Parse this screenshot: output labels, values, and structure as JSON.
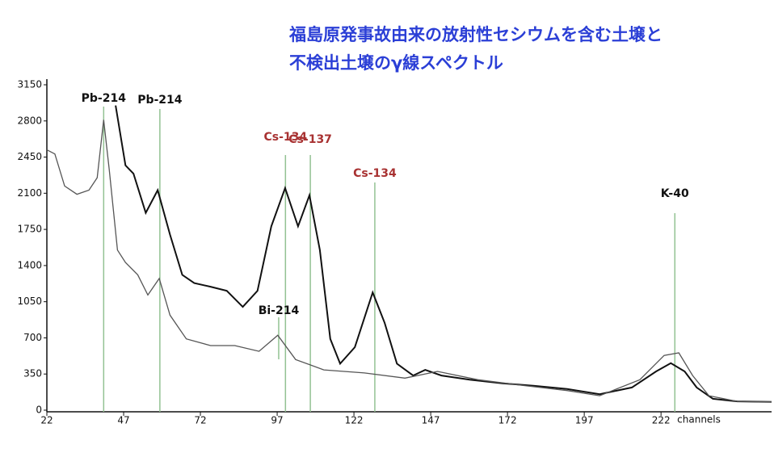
{
  "chart_data": {
    "type": "line",
    "title": [
      "福島原発事故由来の放射性セシウムを含む土壌と",
      "不検出土壌のγ線スペクトル"
    ],
    "x_label": "channels",
    "xlim": [
      22,
      258
    ],
    "xticks": [
      22,
      47,
      72,
      97,
      122,
      147,
      172,
      197,
      222
    ],
    "ylim": [
      0,
      3150
    ],
    "yticks": [
      0,
      350,
      700,
      1050,
      1400,
      1750,
      2100,
      2450,
      2800,
      3150
    ],
    "series": [
      {
        "color": "#111111",
        "x": [
          44.4,
          47.6,
          50.2,
          54.2,
          58.1,
          62.1,
          66.1,
          70,
          75.3,
          80.6,
          85.8,
          90.6,
          95.1,
          99.6,
          103.8,
          107.5,
          110.9,
          114.3,
          117.5,
          122.3,
          128.1,
          132,
          136,
          141.3,
          145.2,
          150.5,
          159.7,
          170.3,
          180.8,
          191.4,
          202,
          212.5,
          220.4,
          225.2,
          229.7,
          233.6,
          238.9,
          246.8,
          258
        ],
        "values": [
          2950,
          2370,
          2290,
          1910,
          2130,
          1700,
          1310,
          1230,
          1195,
          1155,
          1000,
          1155,
          1780,
          2150,
          1780,
          2080,
          1550,
          690,
          450,
          610,
          1140,
          845,
          450,
          335,
          390,
          335,
          295,
          260,
          235,
          205,
          155,
          220,
          375,
          455,
          375,
          220,
          110,
          85,
          80
        ]
      },
      {
        "color": "#555555",
        "x": [
          22,
          24.6,
          27.8,
          31.8,
          35.7,
          38.4,
          40.5,
          42.3,
          45,
          47.6,
          51.6,
          54.9,
          58.6,
          62.1,
          67.4,
          75.3,
          83.2,
          91.1,
          97.2,
          103,
          112.2,
          125.4,
          138.6,
          149.2,
          162.4,
          178.2,
          191.4,
          202,
          215.1,
          223,
          227.8,
          232.3,
          237.6,
          246.8,
          258
        ],
        "values": [
          2520,
          2480,
          2170,
          2090,
          2130,
          2250,
          2810,
          2330,
          1550,
          1430,
          1310,
          1115,
          1275,
          920,
          690,
          625,
          625,
          570,
          725,
          490,
          390,
          360,
          310,
          375,
          295,
          235,
          190,
          140,
          295,
          530,
          555,
          335,
          140,
          85,
          80
        ]
      }
    ],
    "annotations": [
      {
        "label": "Pb-214",
        "x": 40.5,
        "color": "#111111"
      },
      {
        "label": "Pb-214",
        "x": 58.8,
        "color": "#111111"
      },
      {
        "label": "Cs-134",
        "x": 99.7,
        "color": "#a83232"
      },
      {
        "label": "Cs-137",
        "x": 107.8,
        "color": "#a83232"
      },
      {
        "label": "Cs-134",
        "x": 128.8,
        "color": "#a83232"
      },
      {
        "label": "K-40",
        "x": 226.5,
        "color": "#111111"
      },
      {
        "label": "Bi-214",
        "x": 97.5,
        "color": "#111111"
      }
    ],
    "peak_line_color": "#93c293"
  }
}
